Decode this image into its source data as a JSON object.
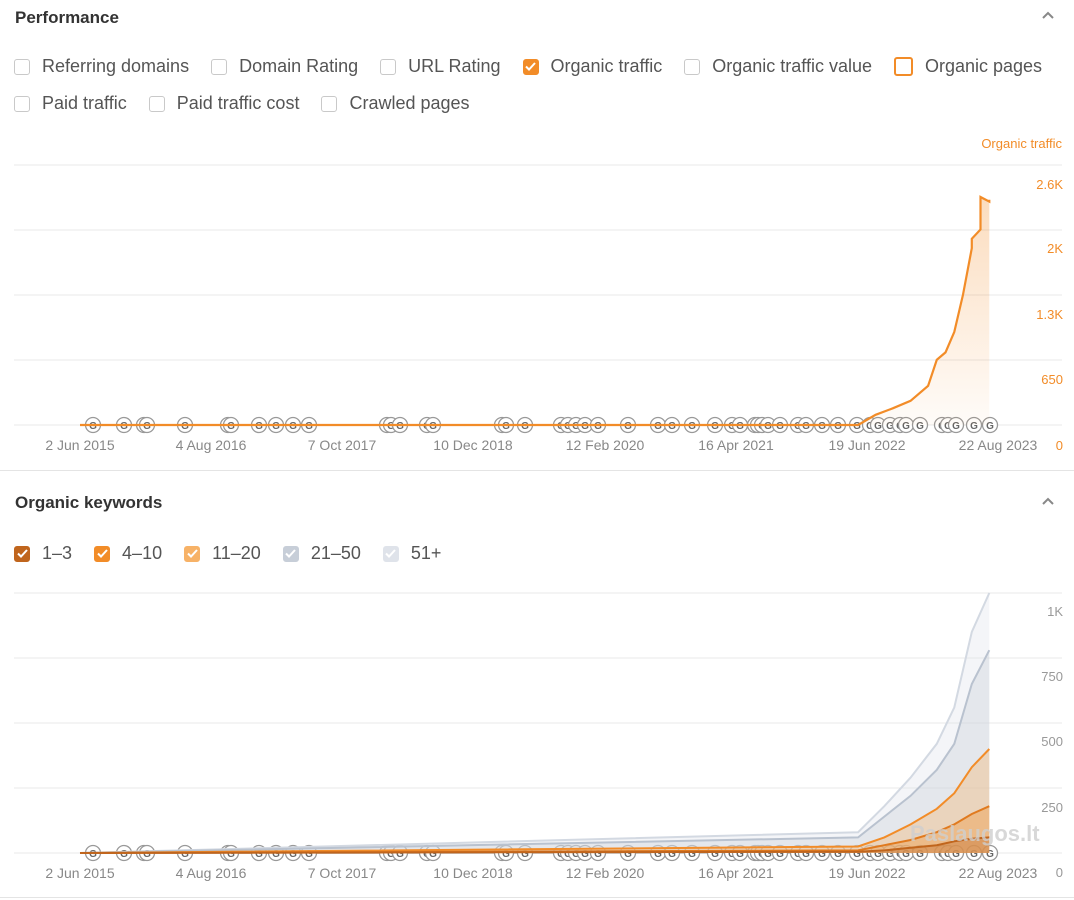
{
  "performance": {
    "title": "Performance",
    "checkboxes_row1": [
      {
        "label": "Referring domains",
        "state": "unchecked"
      },
      {
        "label": "Domain Rating",
        "state": "unchecked"
      },
      {
        "label": "URL Rating",
        "state": "unchecked"
      },
      {
        "label": "Organic traffic",
        "state": "checked"
      },
      {
        "label": "Organic traffic value",
        "state": "unchecked"
      },
      {
        "label": "Organic pages",
        "state": "outline"
      }
    ],
    "checkboxes_row2": [
      {
        "label": "Paid traffic",
        "state": "unchecked"
      },
      {
        "label": "Paid traffic cost",
        "state": "unchecked"
      },
      {
        "label": "Crawled pages",
        "state": "unchecked"
      }
    ]
  },
  "keywords": {
    "title": "Organic keywords",
    "checkboxes": [
      {
        "label": "1–3",
        "color": "#c0651d"
      },
      {
        "label": "4–10",
        "color": "#f28c28"
      },
      {
        "label": "11–20",
        "color": "#f7b267"
      },
      {
        "label": "21–50",
        "color": "#c7ced8"
      },
      {
        "label": "51+",
        "color": "#dfe3ea"
      }
    ]
  },
  "watermark": "Paslaugos.lt",
  "chart_data": [
    {
      "type": "line",
      "ylabel": "Organic traffic",
      "color": "#f28c28",
      "x_ticks": [
        "2 Jun 2015",
        "4 Aug 2016",
        "7 Oct 2017",
        "10 Dec 2018",
        "12 Feb 2020",
        "16 Apr 2021",
        "19 Jun 2022",
        "22 Aug 2023"
      ],
      "y_ticks": [
        "2.6K",
        "2K",
        "1.3K",
        "650",
        "0"
      ],
      "ylim": [
        0,
        2600
      ],
      "series": [
        {
          "name": "Organic traffic",
          "x": [
            "2015-01",
            "2022-06",
            "2022-08",
            "2022-10",
            "2022-12",
            "2023-02",
            "2023-03",
            "2023-04",
            "2023-05",
            "2023-06",
            "2023-07",
            "2023-07",
            "2023-08",
            "2023-08",
            "2023-09",
            "2023-09"
          ],
          "values": [
            0,
            0,
            110,
            180,
            260,
            420,
            700,
            780,
            1000,
            1400,
            1900,
            2000,
            2100,
            2450,
            2400,
            2420
          ]
        }
      ]
    },
    {
      "type": "area",
      "x_ticks": [
        "2 Jun 2015",
        "4 Aug 2016",
        "7 Oct 2017",
        "10 Dec 2018",
        "12 Feb 2020",
        "16 Apr 2021",
        "19 Jun 2022",
        "22 Aug 2023"
      ],
      "y_ticks": [
        "1K",
        "750",
        "500",
        "250",
        "0"
      ],
      "ylim": [
        0,
        1000
      ],
      "x": [
        "2015-01",
        "2022-06",
        "2022-09",
        "2022-12",
        "2023-03",
        "2023-05",
        "2023-07",
        "2023-09"
      ],
      "series": [
        {
          "name": "1–3",
          "values": [
            0,
            5,
            10,
            20,
            30,
            45,
            55,
            60
          ]
        },
        {
          "name": "4–10",
          "values": [
            0,
            10,
            30,
            50,
            80,
            110,
            150,
            180
          ]
        },
        {
          "name": "11–20",
          "values": [
            0,
            25,
            60,
            110,
            170,
            230,
            330,
            400
          ]
        },
        {
          "name": "21–50",
          "values": [
            0,
            60,
            140,
            220,
            320,
            420,
            650,
            780
          ]
        },
        {
          "name": "51+",
          "values": [
            0,
            80,
            180,
            290,
            420,
            560,
            850,
            1000
          ]
        }
      ]
    }
  ]
}
